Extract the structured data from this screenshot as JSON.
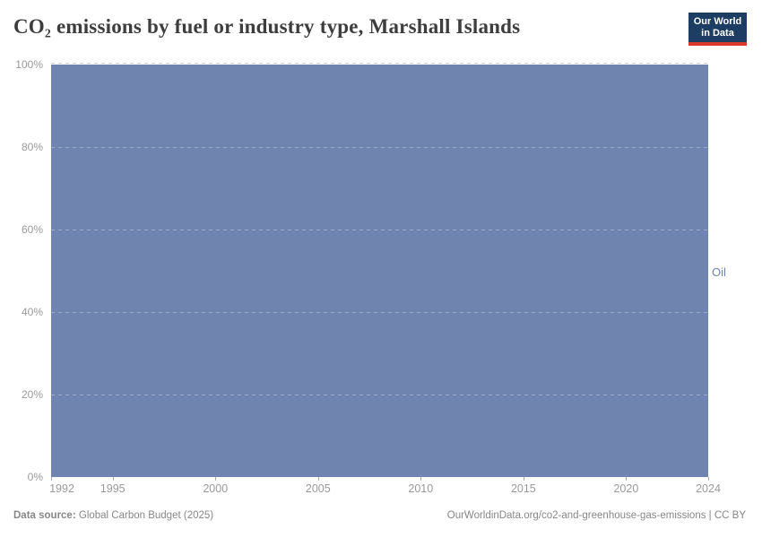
{
  "header": {
    "title": "CO₂ emissions by fuel or industry type, Marshall Islands",
    "logo": {
      "line1": "Our World",
      "line2": "in Data"
    }
  },
  "chart_data": {
    "type": "area",
    "stacked": true,
    "relative": true,
    "title": "CO₂ emissions by fuel or industry type, Marshall Islands",
    "xlabel": "",
    "ylabel": "",
    "xlim": [
      1992,
      2024
    ],
    "ylim": [
      0,
      100
    ],
    "unit": "%",
    "grid": true,
    "legend_position": "right-edge-label",
    "x_ticks": [
      1992,
      1995,
      2000,
      2005,
      2010,
      2015,
      2020,
      2024
    ],
    "y_ticks": [
      "0%",
      "20%",
      "40%",
      "60%",
      "80%",
      "100%"
    ],
    "x": [
      1992,
      1993,
      1994,
      1995,
      1996,
      1997,
      1998,
      1999,
      2000,
      2001,
      2002,
      2003,
      2004,
      2005,
      2006,
      2007,
      2008,
      2009,
      2010,
      2011,
      2012,
      2013,
      2014,
      2015,
      2016,
      2017,
      2018,
      2019,
      2020,
      2021,
      2022,
      2023,
      2024
    ],
    "series": [
      {
        "name": "Oil",
        "color": "#6f84ae",
        "values": [
          100,
          100,
          100,
          100,
          100,
          100,
          100,
          100,
          100,
          100,
          100,
          100,
          100,
          100,
          100,
          100,
          100,
          100,
          100,
          100,
          100,
          100,
          100,
          100,
          100,
          100,
          100,
          100,
          100,
          100,
          100,
          100,
          100
        ]
      }
    ]
  },
  "footer": {
    "source_label": "Data source:",
    "source_value": "Global Carbon Budget (2025)",
    "right": "OurWorldinData.org/co2-and-greenhouse-gas-emissions | CC BY"
  },
  "colors": {
    "oil_fill": "#6f84ae",
    "entity_label": "#6d84ae",
    "title_color": "#3d3d3d",
    "axis_label": "#9a9a9a",
    "footer_color": "#878787",
    "logo_bg": "#1d3d63",
    "logo_red": "#d93a2b"
  }
}
